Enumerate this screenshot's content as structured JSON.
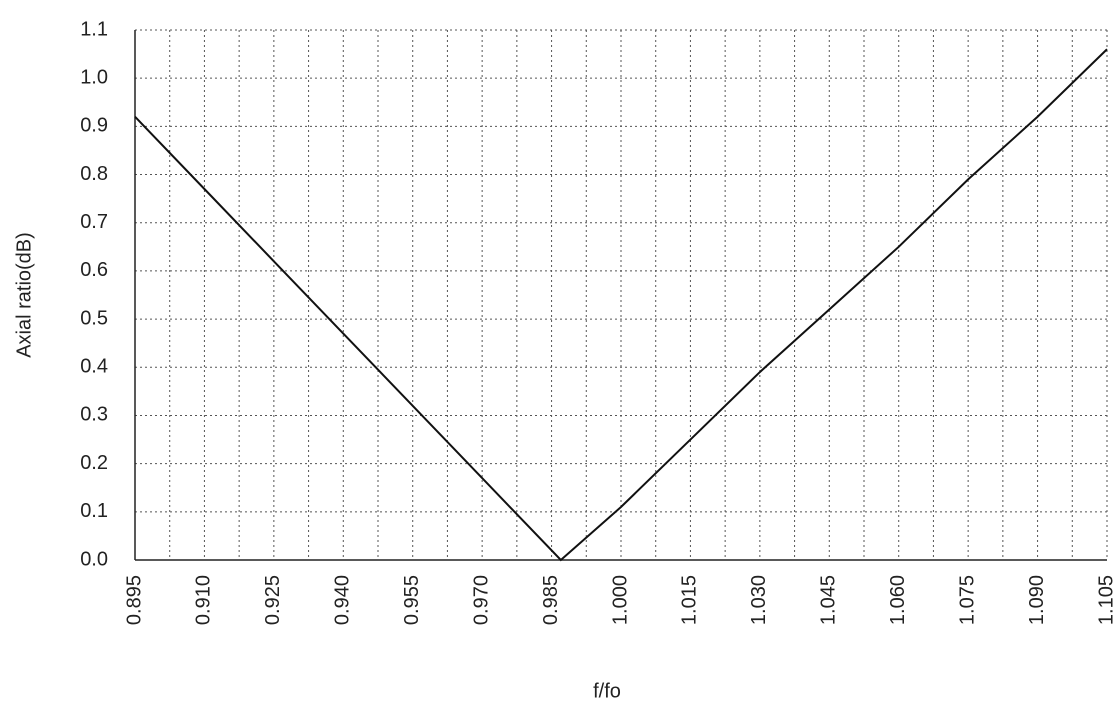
{
  "chart_data": {
    "type": "line",
    "x_label": "f/fo",
    "y_label": "Axial ratio(dB)",
    "x": [
      0.895,
      0.91,
      0.925,
      0.94,
      0.955,
      0.97,
      0.987,
      1.0,
      1.015,
      1.03,
      1.045,
      1.06,
      1.075,
      1.09,
      1.105
    ],
    "series": [
      {
        "color": "#111111",
        "values": [
          0.92,
          0.77,
          0.62,
          0.47,
          0.32,
          0.17,
          0.0,
          0.11,
          0.25,
          0.39,
          0.52,
          0.65,
          0.79,
          0.92,
          1.06
        ]
      }
    ],
    "xlim": [
      0.895,
      1.105
    ],
    "xticks": [
      0.895,
      {
        "value": 0.91,
        "label": "0.910"
      },
      0.925,
      {
        "value": 0.94,
        "label": "0.940"
      },
      0.955,
      {
        "value": 0.97,
        "label": "0.970"
      },
      0.985,
      {
        "value": 1,
        "label": "1.000"
      },
      1.015,
      {
        "value": 1.03,
        "label": "1.030"
      },
      1.045,
      {
        "value": 1.06,
        "label": "1.060"
      },
      1.075,
      {
        "value": 1.09,
        "label": "1.090"
      },
      1.105
    ],
    "ylim": [
      0,
      1.1
    ],
    "yticks": [
      {
        "value": 0,
        "label": "0.0"
      },
      0.1,
      0.2,
      0.3,
      0.4,
      0.5,
      0.6,
      0.7,
      0.8,
      0.9,
      {
        "value": 1,
        "label": "1.0"
      },
      1.1
    ],
    "grid": true
  }
}
